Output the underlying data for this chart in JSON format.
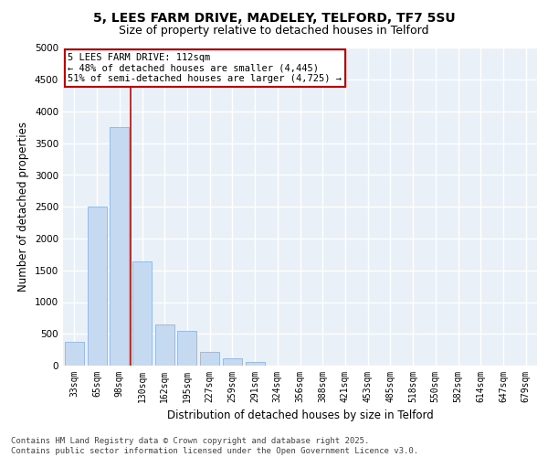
{
  "title_line1": "5, LEES FARM DRIVE, MADELEY, TELFORD, TF7 5SU",
  "title_line2": "Size of property relative to detached houses in Telford",
  "xlabel": "Distribution of detached houses by size in Telford",
  "ylabel": "Number of detached properties",
  "categories": [
    "33sqm",
    "65sqm",
    "98sqm",
    "130sqm",
    "162sqm",
    "195sqm",
    "227sqm",
    "259sqm",
    "291sqm",
    "324sqm",
    "356sqm",
    "388sqm",
    "421sqm",
    "453sqm",
    "485sqm",
    "518sqm",
    "550sqm",
    "582sqm",
    "614sqm",
    "647sqm",
    "679sqm"
  ],
  "values": [
    380,
    2500,
    3750,
    1640,
    650,
    550,
    220,
    120,
    55,
    0,
    0,
    0,
    0,
    0,
    0,
    0,
    0,
    0,
    0,
    0,
    0
  ],
  "bar_color": "#c5d9f1",
  "bar_edgecolor": "#8db4e2",
  "vline_color": "#cc0000",
  "annotation_text": "5 LEES FARM DRIVE: 112sqm\n← 48% of detached houses are smaller (4,445)\n51% of semi-detached houses are larger (4,725) →",
  "annotation_box_color": "#ffffff",
  "annotation_box_edgecolor": "#cc0000",
  "ylim": [
    0,
    5000
  ],
  "yticks": [
    0,
    500,
    1000,
    1500,
    2000,
    2500,
    3000,
    3500,
    4000,
    4500,
    5000
  ],
  "background_color": "#eaf0f8",
  "grid_color": "#ffffff",
  "footnote": "Contains HM Land Registry data © Crown copyright and database right 2025.\nContains public sector information licensed under the Open Government Licence v3.0.",
  "title_fontsize": 10,
  "subtitle_fontsize": 9,
  "axis_label_fontsize": 8.5,
  "tick_fontsize": 7,
  "annotation_fontsize": 7.5,
  "footnote_fontsize": 6.5
}
